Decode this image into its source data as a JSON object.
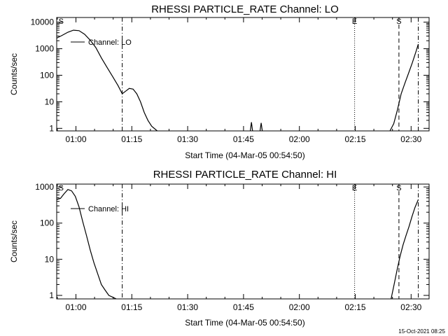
{
  "chart_data": [
    {
      "type": "line",
      "title": "RHESSI PARTICLE_RATE Channel: LO",
      "xlabel": "Start Time (04-Mar-05 00:54:50)",
      "ylabel": "Counts/sec",
      "x_tick_labels": [
        "01:00",
        "01:15",
        "01:30",
        "01:45",
        "02:00",
        "02:15",
        "02:30"
      ],
      "x_tick_minutes": [
        5.17,
        20.17,
        35.17,
        50.17,
        65.17,
        80.17,
        95.17
      ],
      "y_scale": "log",
      "ylim": [
        0.8,
        15000
      ],
      "y_tick_labels": [
        "1",
        "10",
        "100",
        "1000",
        "10000"
      ],
      "y_tick_values": [
        1,
        10,
        100,
        1000,
        10000
      ],
      "xlim_minutes": [
        0,
        100
      ],
      "legend": {
        "text": "Channel: LO",
        "position": "top-left"
      },
      "markers": [
        {
          "label": "S",
          "minutes": 0.3,
          "style": "none"
        },
        {
          "label": "",
          "minutes": 17.6,
          "style": "dashdot"
        },
        {
          "label": "E",
          "minutes": 80.0,
          "style": "dotted"
        },
        {
          "label": "S",
          "minutes": 91.9,
          "style": "dashed"
        },
        {
          "label": "",
          "minutes": 97.1,
          "style": "dashdot"
        }
      ],
      "series": [
        {
          "x": [
            0,
            1.5,
            3,
            4.5,
            6,
            7.5,
            9,
            10.5,
            12,
            13.5,
            15,
            16.5,
            17.6,
            18.5,
            19.5,
            20.5,
            21.5,
            22.5,
            23.5,
            24.5,
            25.5,
            27
          ],
          "y": [
            2500,
            3200,
            4200,
            5000,
            4800,
            3500,
            2100,
            1100,
            450,
            200,
            90,
            40,
            20,
            25,
            32,
            30,
            20,
            10,
            4,
            2,
            1.2,
            0.8
          ]
        },
        {
          "x": [
            52.0,
            52.3,
            52.6
          ],
          "y": [
            0.8,
            1.7,
            0.8
          ]
        },
        {
          "x": [
            54.6,
            54.9,
            55.2
          ],
          "y": [
            0.8,
            1.6,
            0.8
          ]
        },
        {
          "x": [
            89.5,
            90.5,
            91.5,
            92.5,
            93.5,
            94.5,
            95.5,
            96.5,
            97.1
          ],
          "y": [
            0.8,
            1.5,
            5,
            20,
            50,
            120,
            300,
            800,
            1500
          ]
        }
      ]
    },
    {
      "type": "line",
      "title": "RHESSI PARTICLE_RATE Channel: HI",
      "xlabel": "Start Time (04-Mar-05 00:54:50)",
      "ylabel": "Counts/sec",
      "x_tick_labels": [
        "01:00",
        "01:15",
        "01:30",
        "01:45",
        "02:00",
        "02:15",
        "02:30"
      ],
      "x_tick_minutes": [
        5.17,
        20.17,
        35.17,
        50.17,
        65.17,
        80.17,
        95.17
      ],
      "y_scale": "log",
      "ylim": [
        0.8,
        1200
      ],
      "y_tick_labels": [
        "1",
        "10",
        "100",
        "1000"
      ],
      "y_tick_values": [
        1,
        10,
        100,
        1000
      ],
      "xlim_minutes": [
        0,
        100
      ],
      "legend": {
        "text": "Channel: HI",
        "position": "top-left"
      },
      "markers": [
        {
          "label": "S",
          "minutes": 0.3,
          "style": "none"
        },
        {
          "label": "",
          "minutes": 17.6,
          "style": "dashdot"
        },
        {
          "label": "E",
          "minutes": 80.0,
          "style": "dotted"
        },
        {
          "label": "S",
          "minutes": 91.9,
          "style": "dashed"
        },
        {
          "label": "",
          "minutes": 97.1,
          "style": "dashdot"
        }
      ],
      "series": [
        {
          "x": [
            0,
            1,
            2,
            3,
            4,
            5,
            6,
            7,
            8,
            9,
            10,
            11,
            12,
            13,
            14,
            15,
            16
          ],
          "y": [
            450,
            480,
            650,
            850,
            780,
            550,
            280,
            110,
            45,
            18,
            8,
            4,
            2,
            1.4,
            1,
            0.9,
            0.8
          ]
        },
        {
          "x": [
            89.8,
            90.6,
            91.4,
            92.2,
            93.0,
            93.8,
            94.6,
            95.4,
            96.2,
            97.1
          ],
          "y": [
            0.8,
            2,
            5,
            12,
            25,
            45,
            80,
            150,
            270,
            450
          ]
        }
      ]
    }
  ],
  "timestamp": "15-Oct-2021 08:25"
}
